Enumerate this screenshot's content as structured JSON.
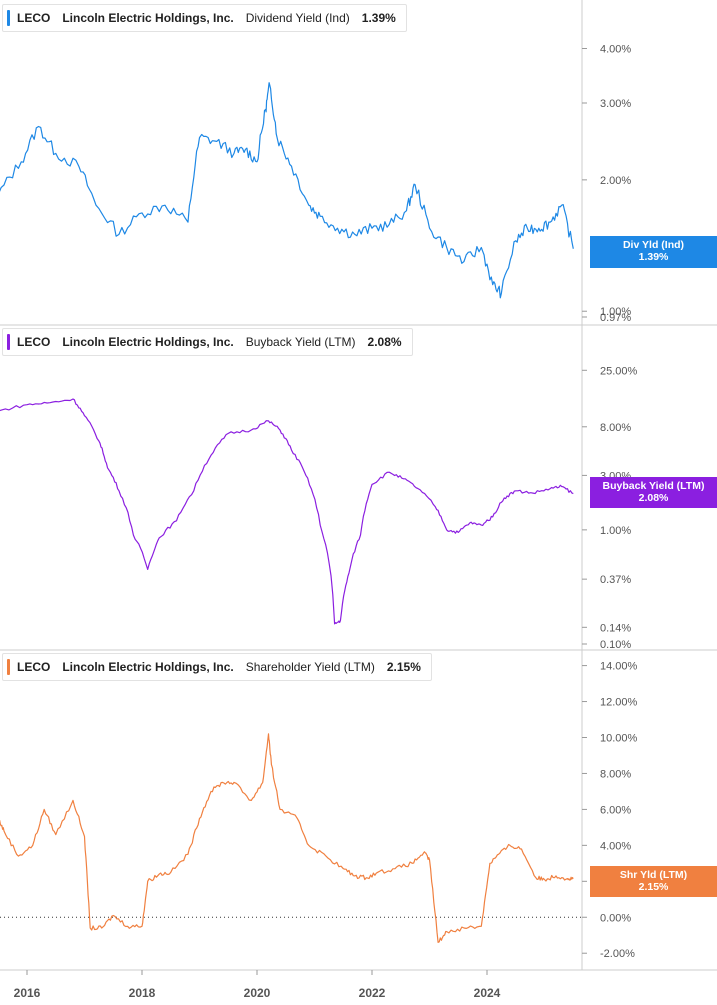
{
  "chart_data": [
    {
      "type": "line",
      "ticker": "LECO",
      "company": "Lincoln Electric Holdings, Inc.",
      "metric": "Dividend Yield (Ind)",
      "current_value": "1.39%",
      "tag": {
        "line1": "Div Yld (Ind)",
        "line2": "1.39%"
      },
      "color": "#1e88e5",
      "y_scale": "log",
      "ylim": [
        0.97,
        4.6
      ],
      "y_ticks": [
        {
          "value": 4.0,
          "label": "4.00%"
        },
        {
          "value": 3.0,
          "label": "3.00%"
        },
        {
          "value": 2.0,
          "label": "2.00%"
        },
        {
          "value": 1.0,
          "label": "1.00%"
        },
        {
          "value": 0.97,
          "label": "0.97%"
        }
      ],
      "series": [
        {
          "x": [
            2015.5,
            2015.9,
            2016.2,
            2016.5,
            2016.9,
            2017.2,
            2017.6,
            2018.0,
            2018.4,
            2018.8,
            2019.0,
            2019.3,
            2019.6,
            2019.8,
            2020.0,
            2020.15,
            2020.22,
            2020.35,
            2020.6,
            2020.9,
            2021.1,
            2021.4,
            2021.7,
            2022.0,
            2022.3,
            2022.6,
            2022.75,
            2023.0,
            2023.3,
            2023.6,
            2023.9,
            2024.1,
            2024.25,
            2024.5,
            2024.7,
            2024.9,
            2025.1,
            2025.3,
            2025.5
          ],
          "y": [
            1.85,
            2.2,
            2.65,
            2.3,
            2.15,
            1.75,
            1.5,
            1.68,
            1.75,
            1.6,
            2.5,
            2.45,
            2.3,
            2.35,
            2.2,
            2.9,
            3.3,
            2.5,
            2.15,
            1.75,
            1.65,
            1.55,
            1.5,
            1.55,
            1.58,
            1.7,
            1.95,
            1.55,
            1.4,
            1.3,
            1.4,
            1.15,
            1.1,
            1.45,
            1.55,
            1.55,
            1.6,
            1.75,
            1.39
          ]
        }
      ]
    },
    {
      "type": "line",
      "ticker": "LECO",
      "company": "Lincoln Electric Holdings, Inc.",
      "metric": "Buyback Yield (LTM)",
      "current_value": "2.08%",
      "tag": {
        "line1": "Buyback Yield (LTM)",
        "line2": "2.08%"
      },
      "color": "#8b1fe0",
      "y_scale": "log",
      "ylim": [
        0.1,
        40
      ],
      "y_ticks": [
        {
          "value": 25.0,
          "label": "25.00%"
        },
        {
          "value": 8.0,
          "label": "8.00%"
        },
        {
          "value": 3.0,
          "label": "3.00%"
        },
        {
          "value": 1.0,
          "label": "1.00%"
        },
        {
          "value": 0.37,
          "label": "0.37%"
        },
        {
          "value": 0.14,
          "label": "0.14%"
        },
        {
          "value": 0.1,
          "label": "0.10%"
        }
      ],
      "series": [
        {
          "x": [
            2015.5,
            2016.0,
            2016.4,
            2016.8,
            2017.0,
            2017.25,
            2017.4,
            2017.6,
            2017.85,
            2018.1,
            2018.3,
            2018.6,
            2018.9,
            2019.2,
            2019.5,
            2019.9,
            2020.2,
            2020.4,
            2020.6,
            2020.85,
            2021.1,
            2021.35,
            2021.45,
            2021.6,
            2021.8,
            2022.0,
            2022.3,
            2022.55,
            2022.8,
            2023.1,
            2023.3,
            2023.5,
            2023.7,
            2023.9,
            2024.1,
            2024.3,
            2024.5,
            2024.8,
            2025.1,
            2025.3,
            2025.5
          ],
          "y": [
            11,
            12.5,
            13,
            14,
            10,
            6,
            3.5,
            2.2,
            0.9,
            0.45,
            0.85,
            1.2,
            2.2,
            4.5,
            7,
            7.5,
            9,
            7.5,
            5,
            3,
            1.1,
            0.15,
            0.16,
            0.42,
            0.9,
            2.5,
            3.2,
            2.8,
            2.3,
            1.6,
            1.0,
            0.95,
            1.15,
            1.1,
            1.3,
            1.9,
            2.2,
            2.1,
            2.3,
            2.4,
            2.08
          ]
        }
      ]
    },
    {
      "type": "line",
      "ticker": "LECO",
      "company": "Lincoln Electric Holdings, Inc.",
      "metric": "Shareholder Yield (LTM)",
      "current_value": "2.15%",
      "tag": {
        "line1": "Shr Yld (LTM)",
        "line2": "2.15%"
      },
      "color": "#f08040",
      "y_scale": "linear",
      "ylim": [
        -2.6,
        14.2
      ],
      "y_ticks": [
        {
          "value": 14,
          "label": "14.00%"
        },
        {
          "value": 12,
          "label": "12.00%"
        },
        {
          "value": 10,
          "label": "10.00%"
        },
        {
          "value": 8,
          "label": "8.00%"
        },
        {
          "value": 6,
          "label": "6.00%"
        },
        {
          "value": 4,
          "label": "4.00%"
        },
        {
          "value": 2,
          "label": "2.00%"
        },
        {
          "value": 0,
          "label": "0.00%"
        },
        {
          "value": -2,
          "label": "-2.00%"
        }
      ],
      "zero_line": true,
      "series": [
        {
          "x": [
            2015.5,
            2015.6,
            2015.85,
            2016.1,
            2016.3,
            2016.5,
            2016.8,
            2017.0,
            2017.1,
            2017.3,
            2017.5,
            2017.75,
            2018.0,
            2018.1,
            2018.3,
            2018.5,
            2018.8,
            2019.0,
            2019.2,
            2019.4,
            2019.6,
            2019.9,
            2020.1,
            2020.2,
            2020.25,
            2020.4,
            2020.7,
            2020.9,
            2021.2,
            2021.5,
            2021.7,
            2021.9,
            2022.1,
            2022.4,
            2022.7,
            2022.9,
            2023.0,
            2023.15,
            2023.3,
            2023.6,
            2023.9,
            2024.05,
            2024.2,
            2024.4,
            2024.6,
            2024.85,
            2025.0,
            2025.2,
            2025.4,
            2025.5
          ],
          "y": [
            5.5,
            4.8,
            3.4,
            4.0,
            6.0,
            4.6,
            6.5,
            4.5,
            -0.6,
            -0.6,
            0.1,
            -0.5,
            -0.5,
            2.0,
            2.4,
            2.5,
            3.5,
            5.5,
            7.0,
            7.5,
            7.5,
            6.5,
            7.5,
            10.2,
            8.5,
            6.0,
            5.5,
            4.0,
            3.4,
            2.7,
            2.3,
            2.2,
            2.5,
            2.7,
            3.0,
            3.6,
            3.2,
            -1.4,
            -0.8,
            -0.6,
            -0.5,
            3.0,
            3.5,
            4.0,
            3.8,
            2.2,
            2.1,
            2.3,
            2.15,
            2.15
          ]
        }
      ]
    }
  ],
  "x_ticks": [
    {
      "value": 2016,
      "label": "2016"
    },
    {
      "value": 2018,
      "label": "2018"
    },
    {
      "value": 2020,
      "label": "2020"
    },
    {
      "value": 2022,
      "label": "2022"
    },
    {
      "value": 2024,
      "label": "2024"
    }
  ]
}
